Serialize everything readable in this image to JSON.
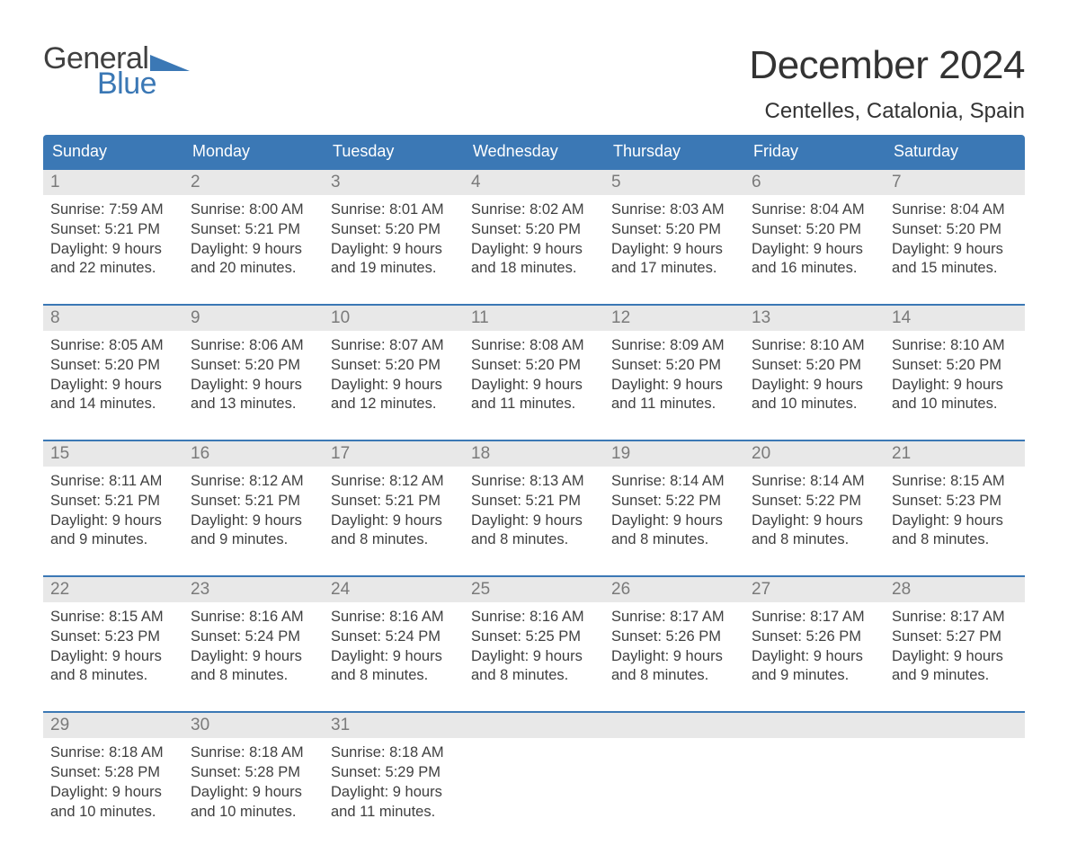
{
  "logo": {
    "word1": "General",
    "word2": "Blue",
    "accent_color": "#3b78b5"
  },
  "title": "December 2024",
  "location": "Centelles, Catalonia, Spain",
  "colors": {
    "header_bg": "#3b78b5",
    "header_text": "#ffffff",
    "daynum_bg": "#e8e8e8",
    "daynum_text": "#7a7a7a",
    "body_text": "#404040",
    "rule": "#3b78b5",
    "page_bg": "#ffffff"
  },
  "day_headers": [
    "Sunday",
    "Monday",
    "Tuesday",
    "Wednesday",
    "Thursday",
    "Friday",
    "Saturday"
  ],
  "weeks": [
    [
      {
        "n": "1",
        "sunrise": "Sunrise: 7:59 AM",
        "sunset": "Sunset: 5:21 PM",
        "d1": "Daylight: 9 hours",
        "d2": "and 22 minutes."
      },
      {
        "n": "2",
        "sunrise": "Sunrise: 8:00 AM",
        "sunset": "Sunset: 5:21 PM",
        "d1": "Daylight: 9 hours",
        "d2": "and 20 minutes."
      },
      {
        "n": "3",
        "sunrise": "Sunrise: 8:01 AM",
        "sunset": "Sunset: 5:20 PM",
        "d1": "Daylight: 9 hours",
        "d2": "and 19 minutes."
      },
      {
        "n": "4",
        "sunrise": "Sunrise: 8:02 AM",
        "sunset": "Sunset: 5:20 PM",
        "d1": "Daylight: 9 hours",
        "d2": "and 18 minutes."
      },
      {
        "n": "5",
        "sunrise": "Sunrise: 8:03 AM",
        "sunset": "Sunset: 5:20 PM",
        "d1": "Daylight: 9 hours",
        "d2": "and 17 minutes."
      },
      {
        "n": "6",
        "sunrise": "Sunrise: 8:04 AM",
        "sunset": "Sunset: 5:20 PM",
        "d1": "Daylight: 9 hours",
        "d2": "and 16 minutes."
      },
      {
        "n": "7",
        "sunrise": "Sunrise: 8:04 AM",
        "sunset": "Sunset: 5:20 PM",
        "d1": "Daylight: 9 hours",
        "d2": "and 15 minutes."
      }
    ],
    [
      {
        "n": "8",
        "sunrise": "Sunrise: 8:05 AM",
        "sunset": "Sunset: 5:20 PM",
        "d1": "Daylight: 9 hours",
        "d2": "and 14 minutes."
      },
      {
        "n": "9",
        "sunrise": "Sunrise: 8:06 AM",
        "sunset": "Sunset: 5:20 PM",
        "d1": "Daylight: 9 hours",
        "d2": "and 13 minutes."
      },
      {
        "n": "10",
        "sunrise": "Sunrise: 8:07 AM",
        "sunset": "Sunset: 5:20 PM",
        "d1": "Daylight: 9 hours",
        "d2": "and 12 minutes."
      },
      {
        "n": "11",
        "sunrise": "Sunrise: 8:08 AM",
        "sunset": "Sunset: 5:20 PM",
        "d1": "Daylight: 9 hours",
        "d2": "and 11 minutes."
      },
      {
        "n": "12",
        "sunrise": "Sunrise: 8:09 AM",
        "sunset": "Sunset: 5:20 PM",
        "d1": "Daylight: 9 hours",
        "d2": "and 11 minutes."
      },
      {
        "n": "13",
        "sunrise": "Sunrise: 8:10 AM",
        "sunset": "Sunset: 5:20 PM",
        "d1": "Daylight: 9 hours",
        "d2": "and 10 minutes."
      },
      {
        "n": "14",
        "sunrise": "Sunrise: 8:10 AM",
        "sunset": "Sunset: 5:20 PM",
        "d1": "Daylight: 9 hours",
        "d2": "and 10 minutes."
      }
    ],
    [
      {
        "n": "15",
        "sunrise": "Sunrise: 8:11 AM",
        "sunset": "Sunset: 5:21 PM",
        "d1": "Daylight: 9 hours",
        "d2": "and 9 minutes."
      },
      {
        "n": "16",
        "sunrise": "Sunrise: 8:12 AM",
        "sunset": "Sunset: 5:21 PM",
        "d1": "Daylight: 9 hours",
        "d2": "and 9 minutes."
      },
      {
        "n": "17",
        "sunrise": "Sunrise: 8:12 AM",
        "sunset": "Sunset: 5:21 PM",
        "d1": "Daylight: 9 hours",
        "d2": "and 8 minutes."
      },
      {
        "n": "18",
        "sunrise": "Sunrise: 8:13 AM",
        "sunset": "Sunset: 5:21 PM",
        "d1": "Daylight: 9 hours",
        "d2": "and 8 minutes."
      },
      {
        "n": "19",
        "sunrise": "Sunrise: 8:14 AM",
        "sunset": "Sunset: 5:22 PM",
        "d1": "Daylight: 9 hours",
        "d2": "and 8 minutes."
      },
      {
        "n": "20",
        "sunrise": "Sunrise: 8:14 AM",
        "sunset": "Sunset: 5:22 PM",
        "d1": "Daylight: 9 hours",
        "d2": "and 8 minutes."
      },
      {
        "n": "21",
        "sunrise": "Sunrise: 8:15 AM",
        "sunset": "Sunset: 5:23 PM",
        "d1": "Daylight: 9 hours",
        "d2": "and 8 minutes."
      }
    ],
    [
      {
        "n": "22",
        "sunrise": "Sunrise: 8:15 AM",
        "sunset": "Sunset: 5:23 PM",
        "d1": "Daylight: 9 hours",
        "d2": "and 8 minutes."
      },
      {
        "n": "23",
        "sunrise": "Sunrise: 8:16 AM",
        "sunset": "Sunset: 5:24 PM",
        "d1": "Daylight: 9 hours",
        "d2": "and 8 minutes."
      },
      {
        "n": "24",
        "sunrise": "Sunrise: 8:16 AM",
        "sunset": "Sunset: 5:24 PM",
        "d1": "Daylight: 9 hours",
        "d2": "and 8 minutes."
      },
      {
        "n": "25",
        "sunrise": "Sunrise: 8:16 AM",
        "sunset": "Sunset: 5:25 PM",
        "d1": "Daylight: 9 hours",
        "d2": "and 8 minutes."
      },
      {
        "n": "26",
        "sunrise": "Sunrise: 8:17 AM",
        "sunset": "Sunset: 5:26 PM",
        "d1": "Daylight: 9 hours",
        "d2": "and 8 minutes."
      },
      {
        "n": "27",
        "sunrise": "Sunrise: 8:17 AM",
        "sunset": "Sunset: 5:26 PM",
        "d1": "Daylight: 9 hours",
        "d2": "and 9 minutes."
      },
      {
        "n": "28",
        "sunrise": "Sunrise: 8:17 AM",
        "sunset": "Sunset: 5:27 PM",
        "d1": "Daylight: 9 hours",
        "d2": "and 9 minutes."
      }
    ],
    [
      {
        "n": "29",
        "sunrise": "Sunrise: 8:18 AM",
        "sunset": "Sunset: 5:28 PM",
        "d1": "Daylight: 9 hours",
        "d2": "and 10 minutes."
      },
      {
        "n": "30",
        "sunrise": "Sunrise: 8:18 AM",
        "sunset": "Sunset: 5:28 PM",
        "d1": "Daylight: 9 hours",
        "d2": "and 10 minutes."
      },
      {
        "n": "31",
        "sunrise": "Sunrise: 8:18 AM",
        "sunset": "Sunset: 5:29 PM",
        "d1": "Daylight: 9 hours",
        "d2": "and 11 minutes."
      },
      null,
      null,
      null,
      null
    ]
  ]
}
